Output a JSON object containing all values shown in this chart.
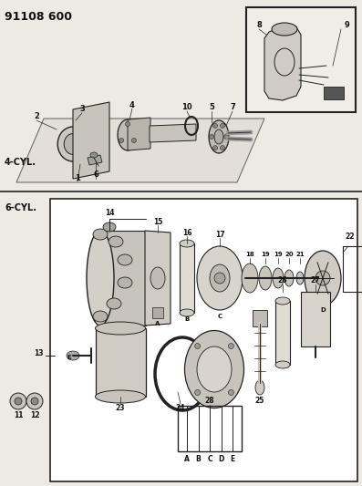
{
  "title": "91108 600",
  "bg_color": "#ede9e3",
  "line_color": "#222222",
  "section1_label": "4-CYL.",
  "section2_label": "6-CYL.",
  "figsize": [
    3.97,
    5.33
  ],
  "dpi": 100
}
